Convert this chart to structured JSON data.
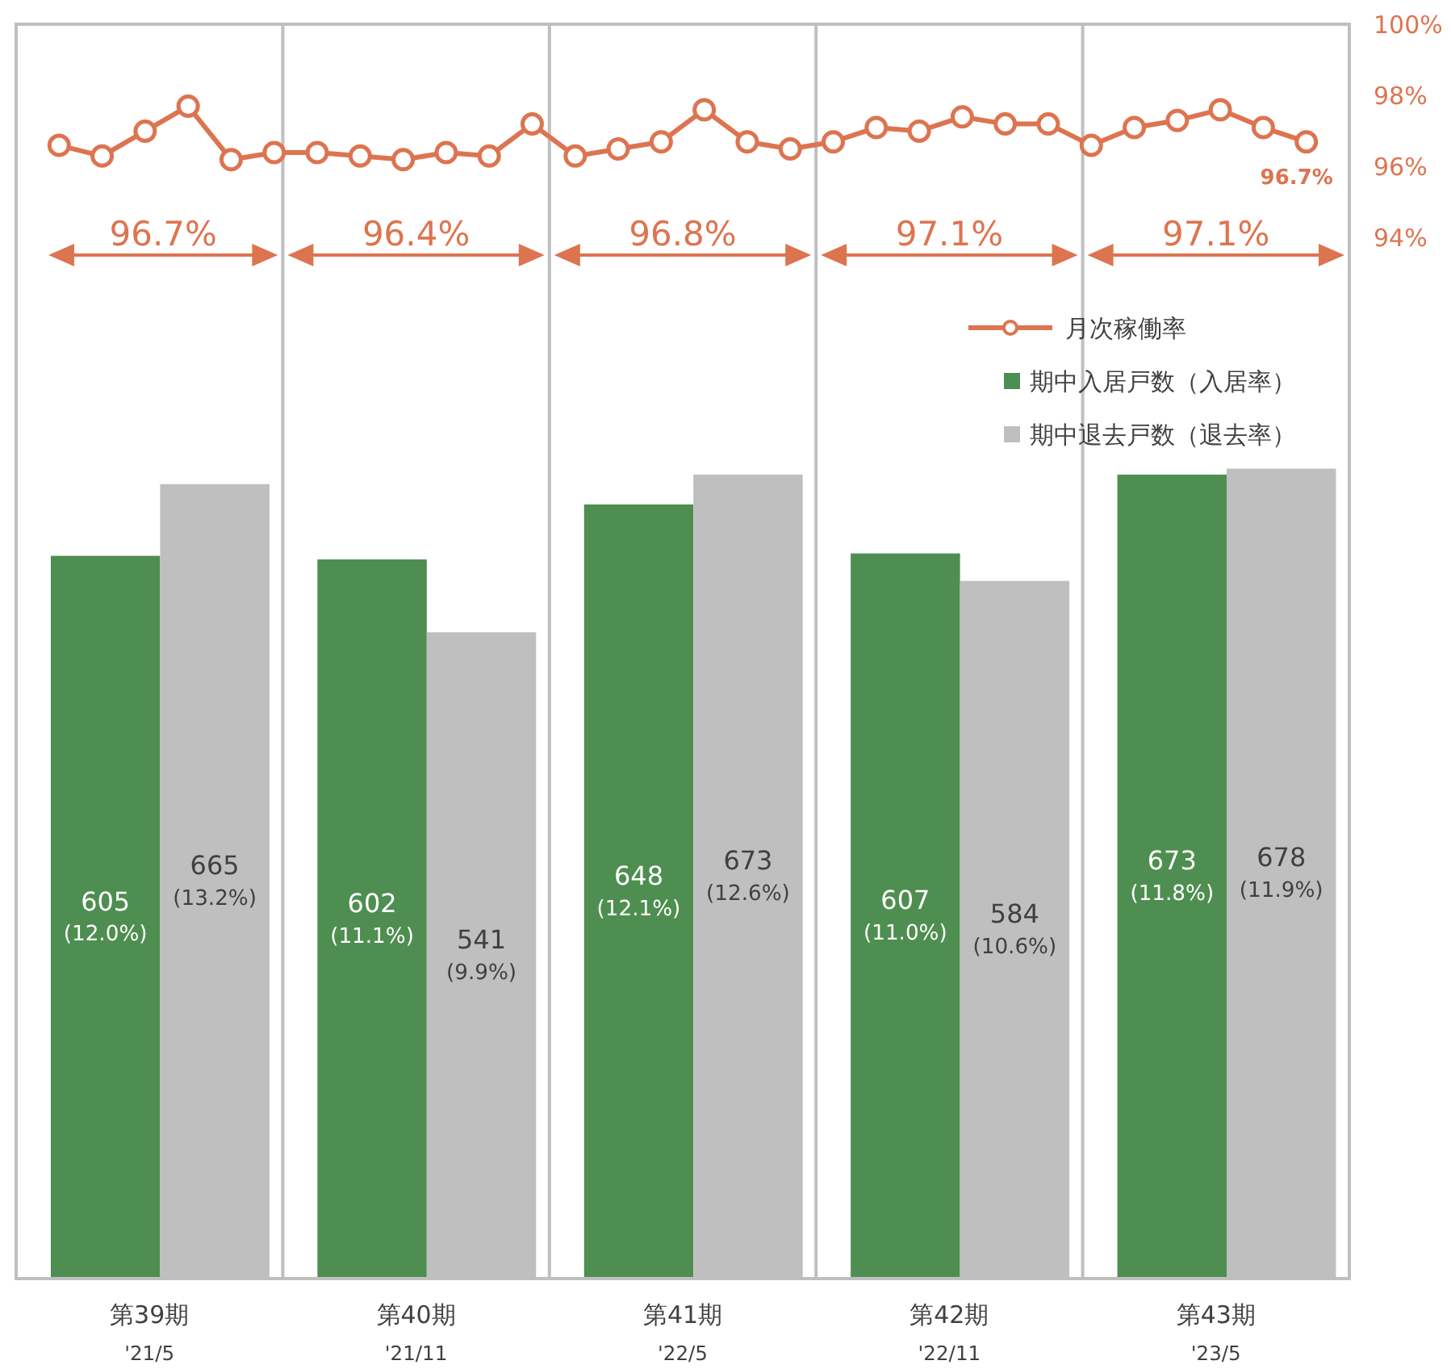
{
  "chart_data": [
    {
      "type": "line",
      "categories": [
        null,
        null,
        null,
        null,
        null,
        null,
        null,
        null,
        null,
        null,
        null,
        null,
        null,
        null,
        null,
        null,
        null,
        null,
        null,
        null,
        null,
        null,
        null,
        null,
        null,
        null,
        null,
        null,
        null,
        null
      ],
      "series": [
        {
          "name": "月次稼働率",
          "color": "#dd7450",
          "values": [
            96.6,
            96.3,
            97.0,
            97.7,
            96.2,
            96.4,
            96.4,
            96.3,
            96.2,
            96.4,
            96.3,
            97.2,
            96.3,
            96.5,
            96.7,
            97.6,
            96.7,
            96.5,
            96.7,
            97.1,
            97.0,
            97.4,
            97.2,
            97.2,
            96.6,
            97.1,
            97.3,
            97.6,
            97.1,
            96.7
          ],
          "value_labels": [
            null,
            null,
            null,
            null,
            null,
            null,
            null,
            null,
            null,
            null,
            null,
            null,
            null,
            null,
            null,
            null,
            null,
            null,
            null,
            null,
            null,
            null,
            null,
            null,
            null,
            null,
            null,
            null,
            null,
            "96.7%"
          ]
        }
      ],
      "marker": "circle",
      "ylim": [
        64.8,
        100
      ],
      "yticks": [
        {
          "value": 94,
          "label": "94%"
        },
        {
          "value": 96,
          "label": "96%"
        },
        {
          "value": 98,
          "label": "98%"
        },
        {
          "value": 100,
          "label": "100%"
        }
      ],
      "tick_labels": "y",
      "annotations": [
        "96.7%",
        "96.4%",
        "96.8%",
        "97.1%",
        "97.1%"
      ],
      "legend": "top right"
    },
    {
      "type": "bar",
      "categories": [
        "第39期\n'21/5",
        "第40期\n'21/11",
        "第41期\n'22/5",
        "第42期\n'22/11",
        "第43期\n'23/5"
      ],
      "series": [
        {
          "name": "期中入居戸数（入居率）",
          "color": "#4e8e50",
          "values": [
            605,
            602,
            648,
            607,
            673
          ],
          "value_labels": [
            "605\n(12.0%)",
            "602\n(11.1%)",
            "648\n(12.1%)",
            "607\n(11.0%)",
            "673\n(11.8%)"
          ]
        },
        {
          "name": "期中退去戸数（退去率）",
          "color": "#bfbfbf",
          "values": [
            665,
            541,
            673,
            584,
            678
          ],
          "value_labels": [
            "665\n(13.2%)",
            "541\n(9.9%)",
            "673\n(12.6%)",
            "584\n(10.6%)",
            "678\n(11.9%)"
          ]
        }
      ],
      "ylim": [
        0,
        1050
      ],
      "tick_labels": "x",
      "legend": "top right"
    }
  ]
}
